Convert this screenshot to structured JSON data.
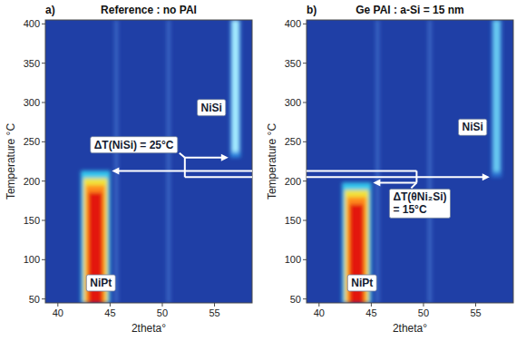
{
  "chart_data": [
    {
      "type": "heatmap",
      "panel_label": "a)",
      "title": "Reference : no PAI",
      "x_label": "2theta°",
      "y_label": "Temperature °C",
      "xlim": [
        38.8,
        58.6
      ],
      "ylim": [
        45,
        405
      ],
      "xticks": [
        40,
        45,
        50,
        55
      ],
      "yticks": [
        50,
        100,
        150,
        200,
        250,
        300,
        350,
        400
      ],
      "peaks": [
        {
          "x": 45.6,
          "width": 0.35,
          "y_range": [
            45,
            405
          ],
          "colors": [
            "#3b67c6"
          ]
        },
        {
          "x": 50.6,
          "width": 0.35,
          "y_range": [
            45,
            405
          ],
          "colors": [
            "#3b67c6"
          ]
        },
        {
          "label": "NiPt",
          "x": 43.6,
          "width": 2.8,
          "y_range": [
            45,
            213
          ],
          "colors": [
            "#35c8ee",
            "#f2e33a",
            "#ff8a1c",
            "#e3140e"
          ]
        },
        {
          "label": "NiSi",
          "x": 57.0,
          "width": 1.0,
          "y_range": [
            230,
            405
          ],
          "colors": [
            "#2f8ae0",
            "#a6ecff"
          ]
        }
      ],
      "annotations": [
        {
          "text": "ΔT(NiSi) = 25°C",
          "peak": "NiSi"
        }
      ]
    },
    {
      "type": "heatmap",
      "panel_label": "b)",
      "title": "Ge PAI : a-Si = 15 nm",
      "x_label": "2theta°",
      "y_label": "Temperature °C",
      "xlim": [
        38.8,
        58.6
      ],
      "ylim": [
        45,
        405
      ],
      "xticks": [
        40,
        45,
        50,
        55
      ],
      "yticks": [
        50,
        100,
        150,
        200,
        250,
        300,
        350,
        400
      ],
      "peaks": [
        {
          "x": 45.6,
          "width": 0.35,
          "y_range": [
            45,
            405
          ],
          "colors": [
            "#3b67c6"
          ]
        },
        {
          "x": 50.6,
          "width": 0.35,
          "y_range": [
            45,
            405
          ],
          "colors": [
            "#3b67c6"
          ]
        },
        {
          "label": "NiPt",
          "x": 43.6,
          "width": 2.8,
          "y_range": [
            45,
            198
          ],
          "colors": [
            "#35c8ee",
            "#f2e33a",
            "#ff8a1c",
            "#e3140e"
          ]
        },
        {
          "label": "NiSi",
          "x": 57.0,
          "width": 1.0,
          "y_range": [
            205,
            405
          ],
          "colors": [
            "#2b72d2",
            "#69cbf2"
          ]
        }
      ],
      "annotations": [
        {
          "text": "ΔT(θNi₂Si) = 15°C",
          "peak": "NiPt"
        }
      ]
    }
  ]
}
